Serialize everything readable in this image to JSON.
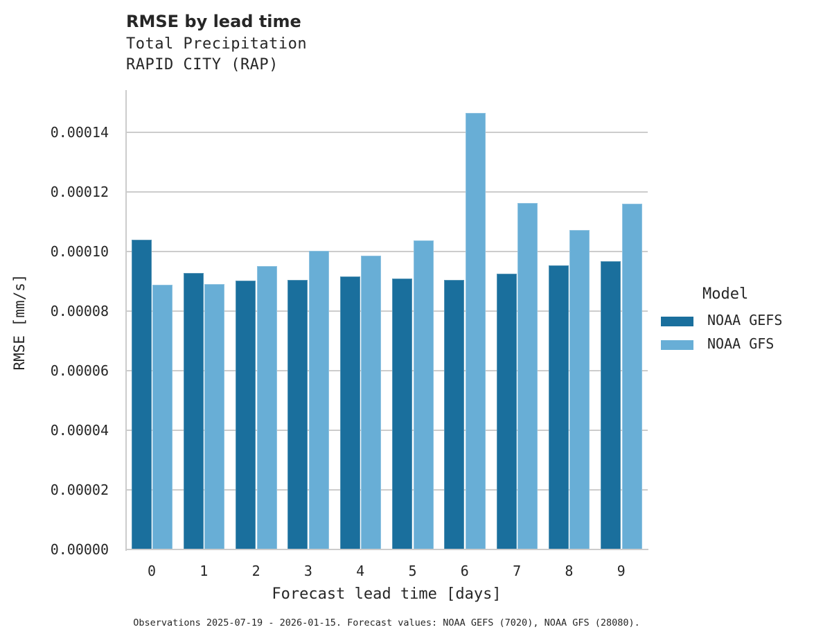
{
  "header": {
    "title": "RMSE by lead time",
    "subtitle_line1": "Total Precipitation",
    "subtitle_line2": "RAPID CITY (RAP)"
  },
  "axes": {
    "ylabel": "RMSE [mm/s]",
    "xlabel": "Forecast lead time [days]",
    "yticks": [
      "0.00000",
      "0.00002",
      "0.00004",
      "0.00006",
      "0.00008",
      "0.00010",
      "0.00012",
      "0.00014"
    ],
    "xticks": [
      "0",
      "1",
      "2",
      "3",
      "4",
      "5",
      "6",
      "7",
      "8",
      "9"
    ]
  },
  "legend": {
    "title": "Model",
    "items": [
      {
        "label": "NOAA GEFS",
        "color": "#1a6f9d"
      },
      {
        "label": "NOAA GFS",
        "color": "#68aed6"
      }
    ]
  },
  "footer": "Observations 2025-07-19 - 2026-01-15. Forecast values: NOAA GEFS (7020), NOAA GFS (28080).",
  "chart_data": {
    "type": "bar",
    "title": "RMSE by lead time",
    "subtitle": "Total Precipitation / RAPID CITY (RAP)",
    "xlabel": "Forecast lead time [days]",
    "ylabel": "RMSE [mm/s]",
    "categories": [
      "0",
      "1",
      "2",
      "3",
      "4",
      "5",
      "6",
      "7",
      "8",
      "9"
    ],
    "series": [
      {
        "name": "NOAA GEFS",
        "color": "#1a6f9d",
        "values": [
          0.000104,
          9.28e-05,
          9.02e-05,
          9.05e-05,
          9.16e-05,
          9.09e-05,
          9.05e-05,
          9.25e-05,
          9.53e-05,
          9.67e-05
        ]
      },
      {
        "name": "NOAA GFS",
        "color": "#68aed6",
        "values": [
          8.89e-05,
          8.91e-05,
          9.52e-05,
          0.0001002,
          9.86e-05,
          0.0001038,
          0.0001465,
          0.0001162,
          0.0001071,
          0.000116
        ]
      }
    ],
    "ylim": [
      0,
      0.000154
    ],
    "yticks": [
      0,
      2e-05,
      4e-05,
      6e-05,
      8e-05,
      0.0001,
      0.00012,
      0.00014
    ],
    "grid": "horizontal",
    "legend_position": "right",
    "legend_title": "Model"
  }
}
